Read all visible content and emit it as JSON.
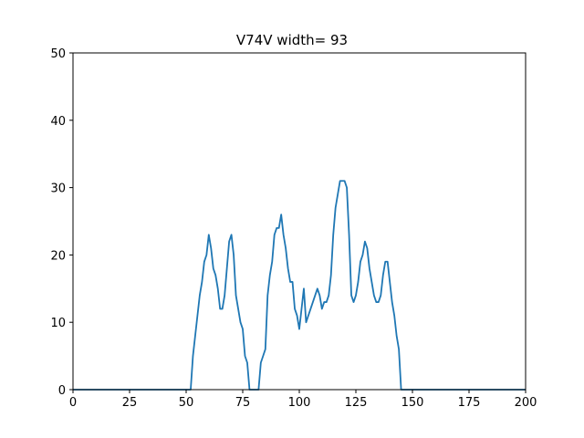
{
  "chart_data": {
    "type": "line",
    "title": "V74V width= 93",
    "xlabel": "",
    "ylabel": "",
    "xlim": [
      0,
      200
    ],
    "ylim": [
      0,
      50
    ],
    "xticks": [
      0,
      25,
      50,
      75,
      100,
      125,
      150,
      175,
      200
    ],
    "yticks": [
      0,
      10,
      20,
      30,
      40,
      50
    ],
    "grid": false,
    "line_color": "#1f77b4",
    "series": [
      {
        "x": [
          0,
          52,
          53,
          54,
          55,
          56,
          57,
          58,
          59,
          60,
          61,
          62,
          63,
          64,
          65,
          66,
          67,
          68,
          69,
          70,
          71,
          72,
          73,
          74,
          75,
          76,
          77,
          78,
          79,
          80,
          81,
          82,
          83,
          84,
          85,
          86,
          87,
          88,
          89,
          90,
          91,
          92,
          93,
          94,
          95,
          96,
          97,
          98,
          99,
          100,
          101,
          102,
          103,
          104,
          105,
          106,
          107,
          108,
          109,
          110,
          111,
          112,
          113,
          114,
          115,
          116,
          117,
          118,
          119,
          120,
          121,
          122,
          123,
          124,
          125,
          126,
          127,
          128,
          129,
          130,
          131,
          132,
          133,
          134,
          135,
          136,
          137,
          138,
          139,
          140,
          141,
          142,
          143,
          144,
          145,
          200
        ],
        "y": [
          0,
          0,
          5,
          8,
          11,
          14,
          16,
          19,
          20,
          23,
          21,
          18,
          17,
          15,
          12,
          12,
          14,
          18,
          22,
          23,
          20,
          14,
          12,
          10,
          9,
          5,
          4,
          0,
          0,
          0,
          0,
          0,
          4,
          5,
          6,
          14,
          17,
          19,
          23,
          24,
          24,
          26,
          23,
          21,
          18,
          16,
          16,
          12,
          11,
          9,
          12,
          15,
          10,
          11,
          12,
          13,
          14,
          15,
          14,
          12,
          13,
          13,
          14,
          17,
          23,
          27,
          29,
          31,
          31,
          31,
          30,
          23,
          14,
          13,
          14,
          16,
          19,
          20,
          22,
          21,
          18,
          16,
          14,
          13,
          13,
          14,
          17,
          19,
          19,
          16,
          13,
          11,
          8,
          6,
          0,
          0
        ]
      }
    ]
  }
}
